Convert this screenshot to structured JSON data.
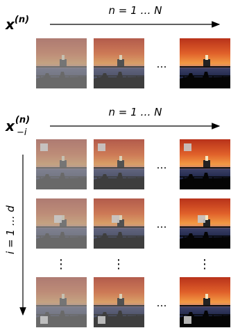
{
  "top_section": {
    "label": {
      "base": "x",
      "superscript": "(n)"
    },
    "arrow_label": "n = 1 … N"
  },
  "bottom_section": {
    "label": {
      "base": "x",
      "superscript": "(n)",
      "subscript": "−i"
    },
    "arrow_label": "n = 1 … N",
    "vertical_label": "i = 1 … d"
  },
  "horizontal_ellipsis": "…",
  "vertical_ellipsis": "⋮"
}
